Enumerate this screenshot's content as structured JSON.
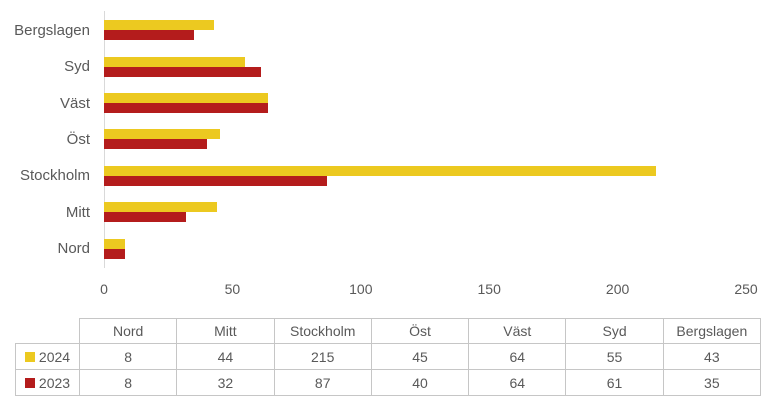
{
  "chart_data": {
    "type": "bar",
    "orientation": "horizontal",
    "title": "",
    "xlabel": "",
    "ylabel": "",
    "categories": [
      "Nord",
      "Mitt",
      "Stockholm",
      "Öst",
      "Väst",
      "Syd",
      "Bergslagen"
    ],
    "category_display_order_top_to_bottom": [
      "Bergslagen",
      "Syd",
      "Väst",
      "Öst",
      "Stockholm",
      "Mitt",
      "Nord"
    ],
    "series": [
      {
        "name": "2024",
        "color": "#ECC920",
        "values": [
          8,
          44,
          215,
          45,
          64,
          55,
          43
        ]
      },
      {
        "name": "2023",
        "color": "#B41C1C",
        "values": [
          8,
          32,
          87,
          40,
          64,
          61,
          35
        ]
      }
    ],
    "x_axis": {
      "min": 0,
      "max": 250,
      "ticks": [
        "0",
        "50",
        "100",
        "150",
        "200",
        "250"
      ]
    },
    "gridlines": false,
    "legend_position": "data-table-below-chart"
  },
  "colors": {
    "bar_2024": "#ECC920",
    "bar_2023": "#B41C1C",
    "axis_line": "#d9d9d9",
    "text": "#595959",
    "table_border": "#c6c6c6",
    "background": "#ffffff"
  }
}
